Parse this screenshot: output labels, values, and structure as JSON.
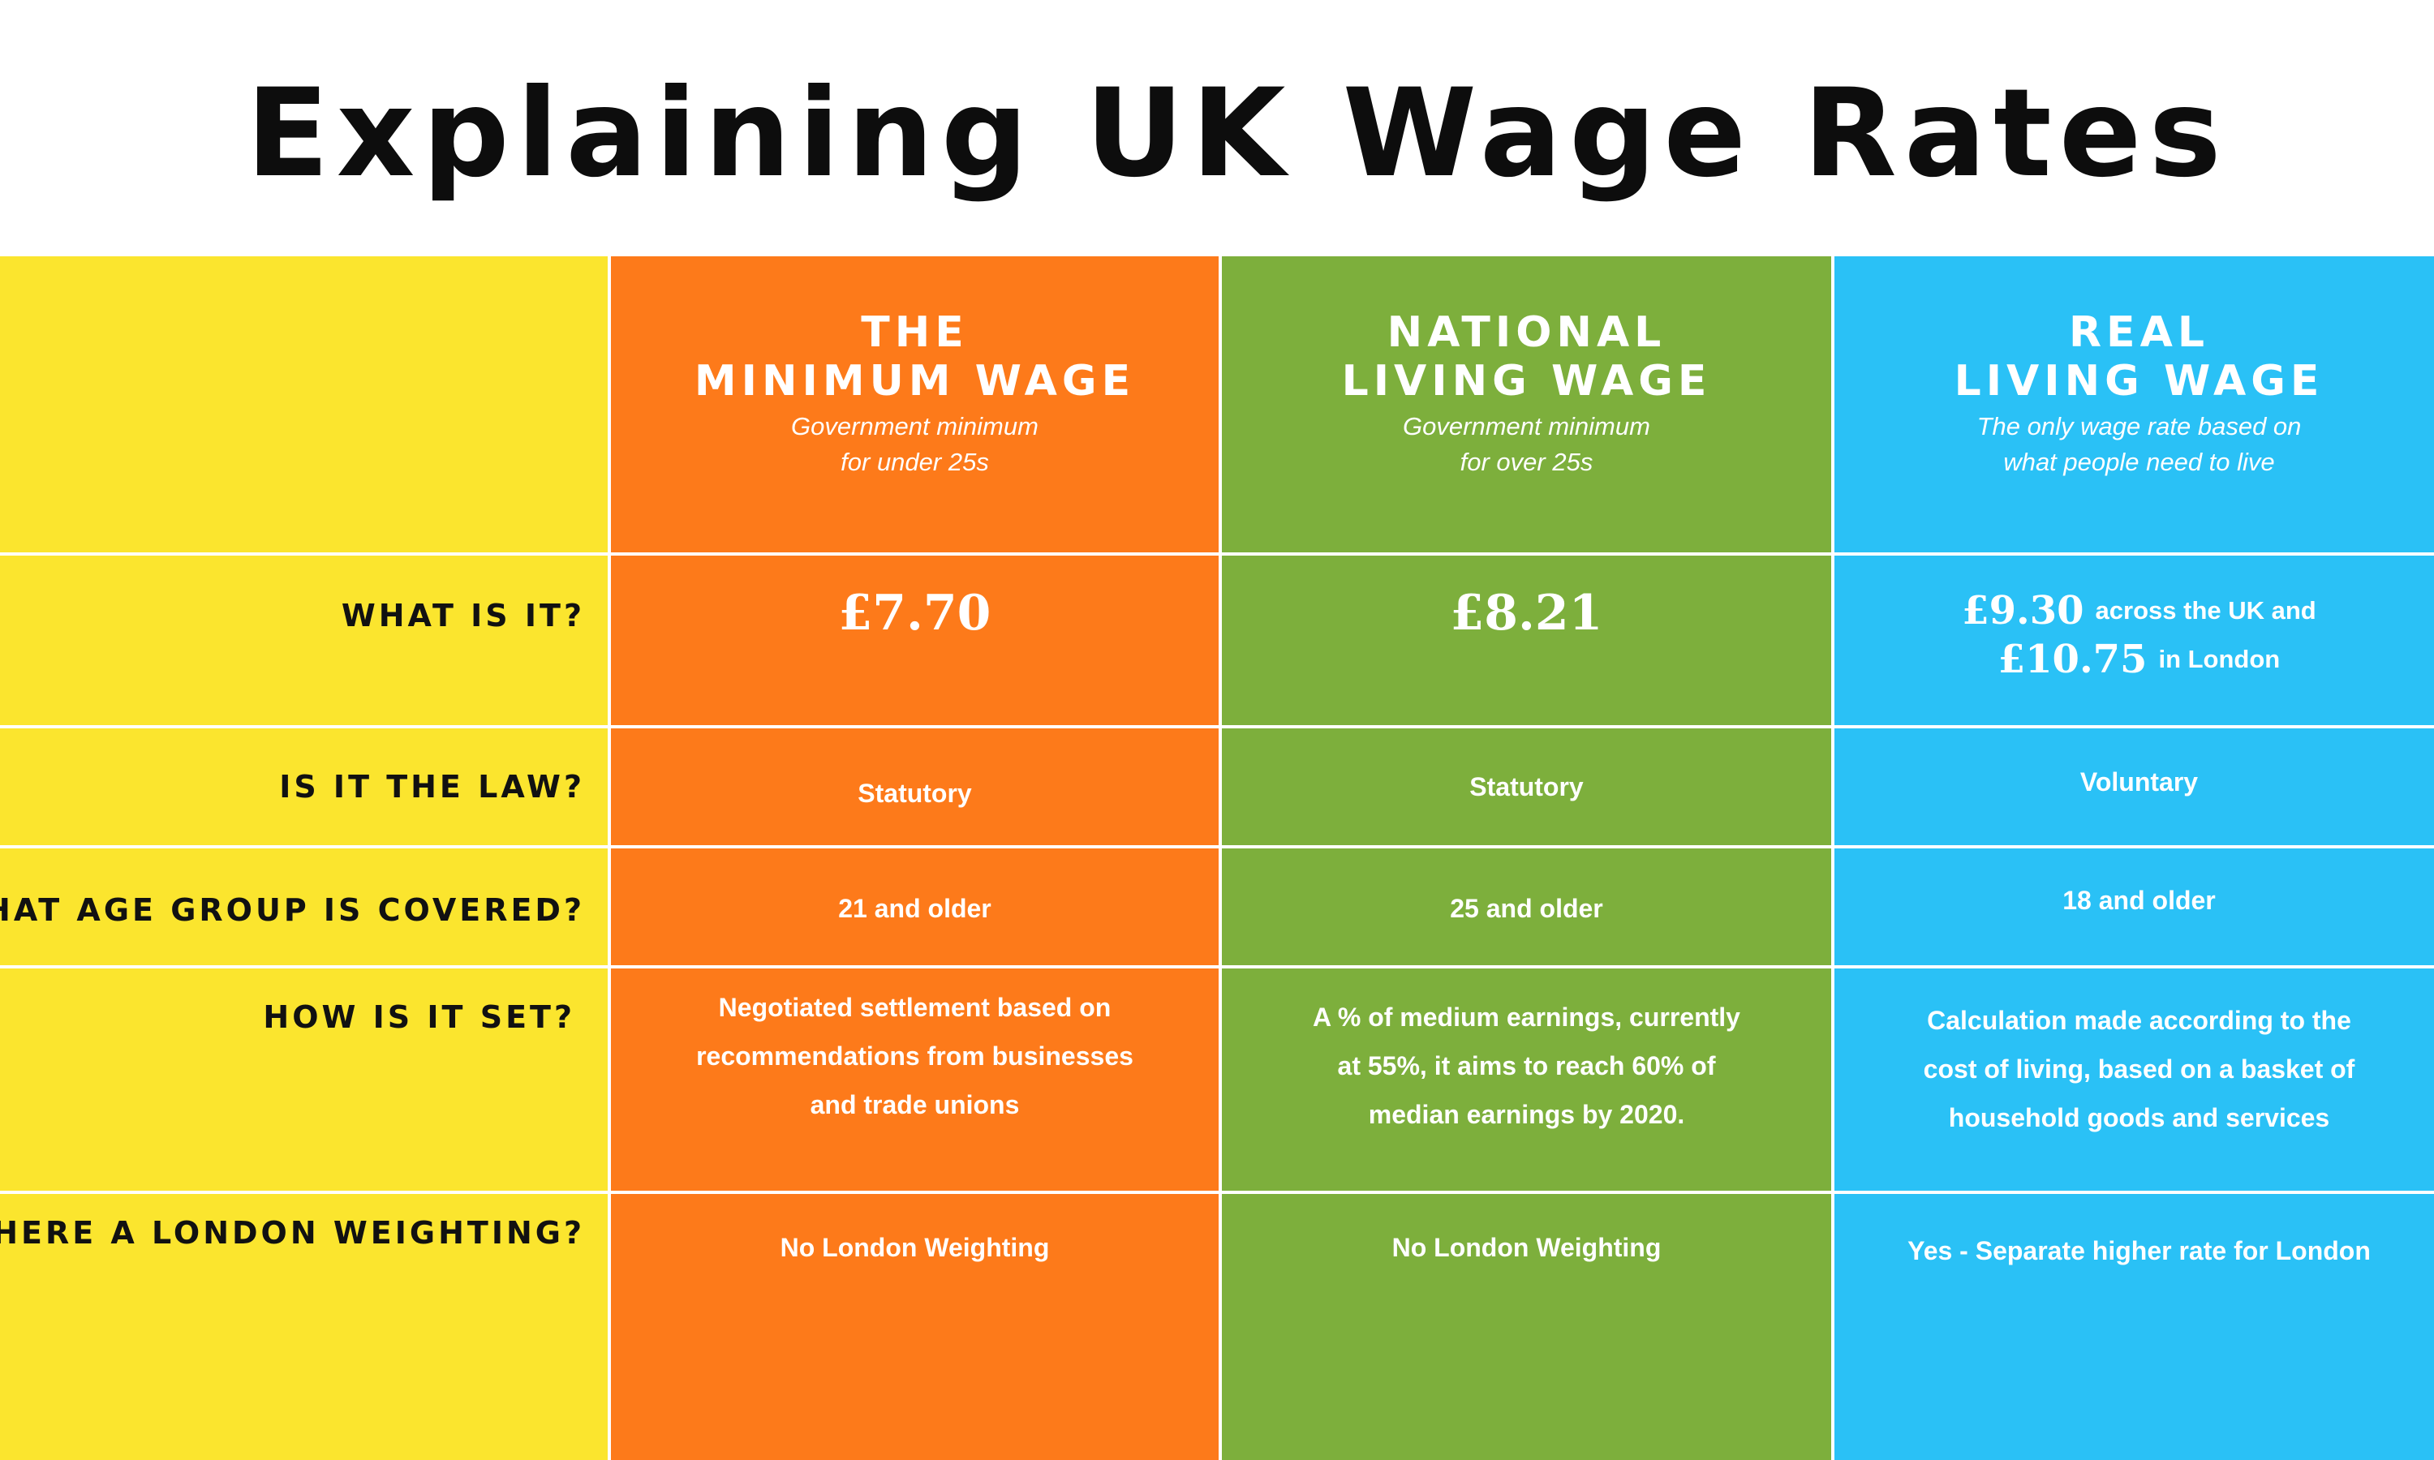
{
  "title": "Explaining UK Wage Rates",
  "colors": {
    "yellow": "#FBE52E",
    "orange": "#FD7A1A",
    "green": "#7DAF3C",
    "blue": "#2AC1F6"
  },
  "columns": [
    {
      "title_line1": "THE",
      "title_line2": "MINIMUM WAGE",
      "subtitle_line1": "Government minimum",
      "subtitle_line2": "for under 25s",
      "rate": "£7.70",
      "law": "Statutory",
      "age": "21 and older",
      "set_line1": "Negotiated settlement based on",
      "set_line2": "recommendations from businesses",
      "set_line3": "and trade unions",
      "london": "No London Weighting"
    },
    {
      "title_line1": "NATIONAL",
      "title_line2": "LIVING WAGE",
      "subtitle_line1": "Government minimum",
      "subtitle_line2": "for over 25s",
      "rate": "£8.21",
      "law": "Statutory",
      "age": "25 and older",
      "set_line1": "A % of medium earnings, currently",
      "set_line2": "at 55%, it aims to reach 60% of",
      "set_line3": "median earnings by 2020.",
      "london": "No London Weighting"
    },
    {
      "title_line1": "REAL",
      "title_line2": "LIVING WAGE",
      "subtitle_line1": "The only wage rate based on",
      "subtitle_line2": "what people need to live",
      "rate_uk": "£9.30",
      "rate_uk_note": "across the UK and",
      "rate_london": "£10.75",
      "rate_london_note": "in London",
      "law": "Voluntary",
      "age": "18 and older",
      "set_line1": "Calculation made according to the",
      "set_line2": "cost of living, based on a basket of",
      "set_line3": "household goods and services",
      "london": "Yes - Separate higher rate for London"
    }
  ],
  "row_labels": {
    "what": "WHAT IS IT?",
    "law": "IS IT THE LAW?",
    "age": "WHAT AGE GROUP IS COVERED?",
    "set": "HOW IS IT SET?",
    "london": "IS THERE A LONDON WEIGHTING?"
  }
}
